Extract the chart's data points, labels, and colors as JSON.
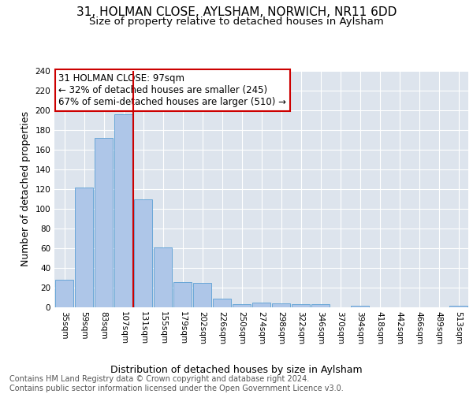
{
  "title_line1": "31, HOLMAN CLOSE, AYLSHAM, NORWICH, NR11 6DD",
  "title_line2": "Size of property relative to detached houses in Aylsham",
  "xlabel": "Distribution of detached houses by size in Aylsham",
  "ylabel": "Number of detached properties",
  "footer": "Contains HM Land Registry data © Crown copyright and database right 2024.\nContains public sector information licensed under the Open Government Licence v3.0.",
  "categories": [
    "35sqm",
    "59sqm",
    "83sqm",
    "107sqm",
    "131sqm",
    "155sqm",
    "179sqm",
    "202sqm",
    "226sqm",
    "250sqm",
    "274sqm",
    "298sqm",
    "322sqm",
    "346sqm",
    "370sqm",
    "394sqm",
    "418sqm",
    "442sqm",
    "466sqm",
    "489sqm",
    "513sqm"
  ],
  "values": [
    28,
    122,
    172,
    196,
    110,
    61,
    26,
    25,
    9,
    3,
    5,
    4,
    3,
    3,
    0,
    2,
    0,
    0,
    0,
    0,
    2
  ],
  "bar_color": "#aec6e8",
  "bar_edge_color": "#5a9fd4",
  "vline_x": 3.5,
  "vline_color": "#cc0000",
  "annotation_text": "31 HOLMAN CLOSE: 97sqm\n← 32% of detached houses are smaller (245)\n67% of semi-detached houses are larger (510) →",
  "box_edge_color": "#cc0000",
  "ylim": [
    0,
    240
  ],
  "yticks": [
    0,
    20,
    40,
    60,
    80,
    100,
    120,
    140,
    160,
    180,
    200,
    220,
    240
  ],
  "background_color": "#dde4ed",
  "grid_color": "#ffffff",
  "title1_fontsize": 11,
  "title2_fontsize": 9.5,
  "xlabel_fontsize": 9,
  "ylabel_fontsize": 9,
  "tick_fontsize": 7.5,
  "footer_fontsize": 7,
  "annotation_fontsize": 8.5
}
